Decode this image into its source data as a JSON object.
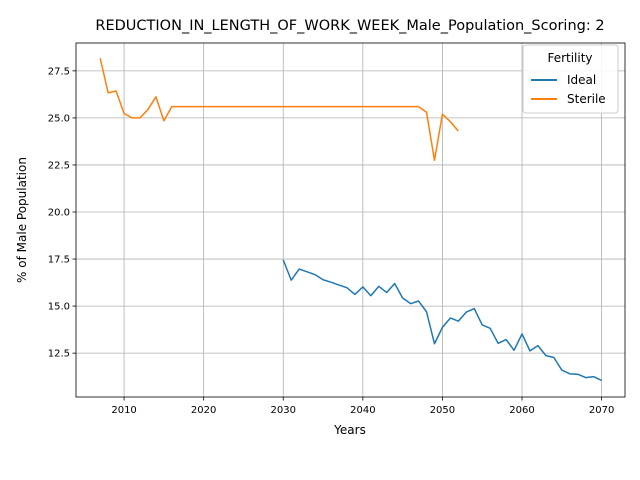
{
  "chart_data": {
    "type": "line",
    "title": "REDUCTION_IN_LENGTH_OF_WORK_WEEK_Male_Population_Scoring: 2",
    "xlabel": "Years",
    "ylabel": "% of Male Population",
    "xlim": [
      2003.96,
      2072.94
    ],
    "ylim": [
      10.17,
      28.98
    ],
    "x_ticks": [
      2010,
      2020,
      2030,
      2040,
      2050,
      2060,
      2070
    ],
    "y_ticks": [
      12.5,
      15.0,
      17.5,
      20.0,
      22.5,
      25.0,
      27.5
    ],
    "x_tick_labels": [
      "2010",
      "2020",
      "2030",
      "2040",
      "2050",
      "2060",
      "2070"
    ],
    "y_tick_labels": [
      "12.5",
      "15.0",
      "17.5",
      "20.0",
      "22.5",
      "25.0",
      "27.5"
    ],
    "grid": true,
    "legend": {
      "title": "Fertility",
      "placement": "top-right"
    },
    "series": [
      {
        "name": "Ideal",
        "color": "#1f77b4",
        "x": [
          2030,
          2031,
          2032,
          2033,
          2034,
          2035,
          2036,
          2037,
          2038,
          2039,
          2040,
          2041,
          2042,
          2043,
          2044,
          2045,
          2046,
          2047,
          2048,
          2049,
          2050,
          2051,
          2052,
          2053,
          2054,
          2055,
          2056,
          2057,
          2058,
          2059,
          2060,
          2061,
          2062,
          2063,
          2064,
          2065,
          2066,
          2067,
          2068,
          2069,
          2070
        ],
        "y": [
          17.45,
          16.38,
          16.97,
          16.82,
          16.67,
          16.4,
          16.27,
          16.12,
          15.98,
          15.62,
          16.02,
          15.55,
          16.05,
          15.72,
          16.2,
          15.43,
          15.13,
          15.27,
          14.7,
          13.0,
          13.87,
          14.37,
          14.2,
          14.68,
          14.87,
          14.0,
          13.82,
          13.02,
          13.22,
          12.65,
          13.52,
          12.62,
          12.9,
          12.37,
          12.27,
          11.6,
          11.4,
          11.38,
          11.2,
          11.25,
          11.05
        ]
      },
      {
        "name": "Sterile",
        "color": "#ff7f0e",
        "x": [
          2007,
          2008,
          2009,
          2010,
          2011,
          2012,
          2013,
          2014,
          2015,
          2016,
          2017,
          2018,
          2019,
          2020,
          2021,
          2022,
          2023,
          2024,
          2025,
          2026,
          2027,
          2028,
          2029,
          2030,
          2031,
          2032,
          2033,
          2034,
          2035,
          2036,
          2037,
          2038,
          2039,
          2040,
          2041,
          2042,
          2043,
          2044,
          2045,
          2046,
          2047,
          2048,
          2049,
          2050,
          2051,
          2052
        ],
        "y": [
          28.17,
          26.33,
          26.43,
          25.23,
          25.0,
          25.0,
          25.45,
          26.12,
          24.85,
          25.6,
          25.6,
          25.6,
          25.6,
          25.6,
          25.6,
          25.6,
          25.6,
          25.6,
          25.6,
          25.6,
          25.6,
          25.6,
          25.6,
          25.6,
          25.6,
          25.6,
          25.6,
          25.6,
          25.6,
          25.6,
          25.6,
          25.6,
          25.6,
          25.6,
          25.6,
          25.6,
          25.6,
          25.6,
          25.6,
          25.6,
          25.6,
          25.3,
          22.75,
          25.2,
          24.8,
          24.3
        ]
      }
    ]
  }
}
